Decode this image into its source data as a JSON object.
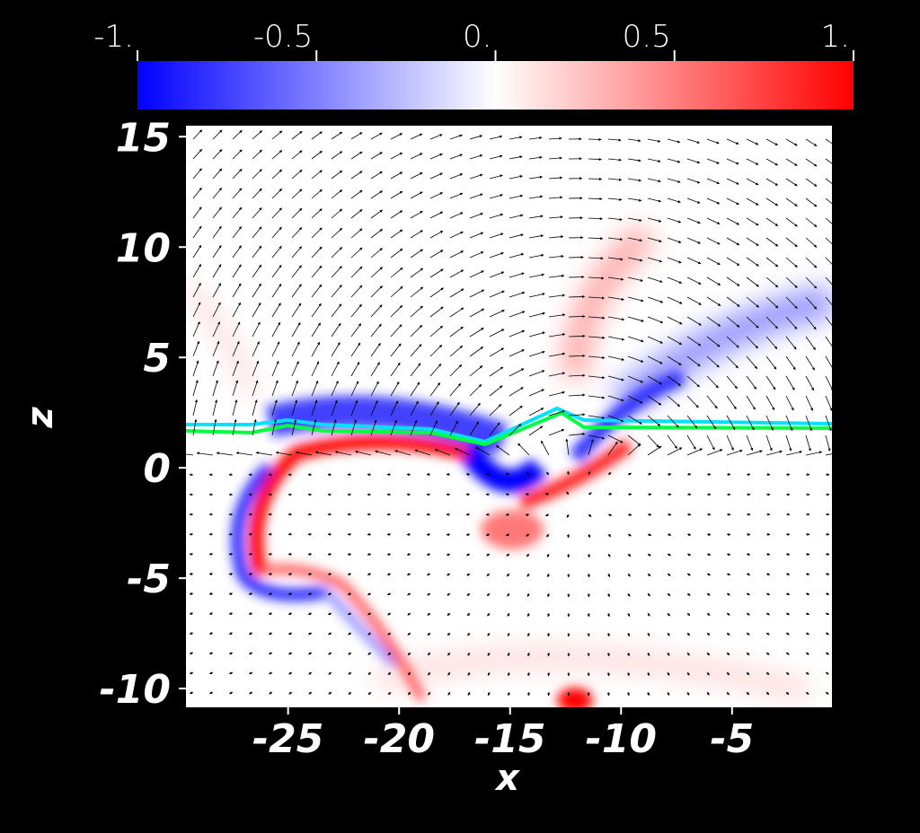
{
  "chart_data": {
    "type": "heatmap",
    "colorbar": {
      "range": [
        -1,
        1
      ],
      "colors": [
        "#0000ff",
        "#ffffff",
        "#ff0000"
      ],
      "ticks": [
        {
          "value": -1,
          "label": "-1."
        },
        -0.5,
        {
          "value": 0,
          "label": "0."
        },
        0.5,
        {
          "value": 1,
          "label": "1."
        }
      ]
    },
    "x_label": "x",
    "y_label": "z",
    "xlim": [
      -29.6,
      -0.5
    ],
    "xticks": [
      -25,
      -20,
      -15,
      -10,
      -5
    ],
    "ylim": [
      -10.85,
      15.5
    ],
    "yticks": [
      -10,
      -5,
      0,
      5,
      10,
      15
    ]
  }
}
